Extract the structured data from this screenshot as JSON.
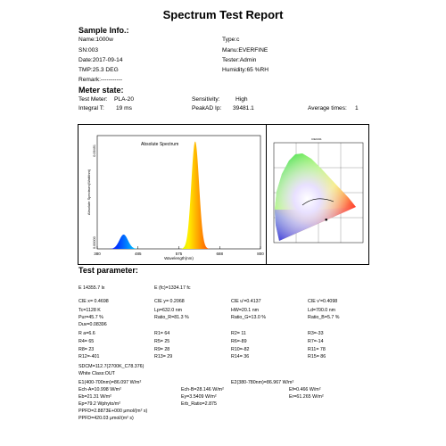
{
  "title": "Spectrum  Test Report",
  "sample": {
    "heading": "Sample Info.:",
    "name": "Name:1000w",
    "type": "Type:c",
    "sn": "SN:003",
    "manu": "Manu:EVERFINE",
    "date": "Date:2017-09-14",
    "tester": "Tester:Admin",
    "tmp": "TMP:25.3 DEG",
    "humidity": "Humidity:65 %RH",
    "remark": "Remark:-----------"
  },
  "meter": {
    "heading": "Meter state:",
    "test_meter_label": "Test Meter:",
    "test_meter": "PLA-20",
    "sensitivity_label": "Sensitivity:",
    "sensitivity": "High",
    "integral_label": "Integral T:",
    "integral": "19 ms",
    "peak_label": "PeakAD Ip:",
    "peak": "39481.1",
    "avg_label": "Average times:",
    "avg": "1"
  },
  "chart_data": [
    {
      "type": "line",
      "title": "Absolute Spectrum",
      "xlabel": "Wavelength(nm)",
      "ylabel": "Absolute Spectrum(Watt/nm)",
      "xlim": [
        380,
        800
      ],
      "ylim": [
        0,
        0.09491
      ],
      "x_ticks": [
        "380",
        "485",
        "575",
        "688",
        "800"
      ],
      "y_ticks": [
        "0.00000",
        "0.09491"
      ],
      "series": [
        {
          "peaks": [
            {
              "center": 448,
              "width": 11,
              "height": 0.012
            },
            {
              "center": 632,
              "width": 10,
              "height": 0.09
            }
          ]
        }
      ]
    },
    {
      "type": "scatter",
      "title": "CIE1931",
      "points": [
        {
          "x": 0.4698,
          "y": 0.2068
        }
      ]
    }
  ],
  "param": {
    "heading": "Test parameter:",
    "rows": [
      [
        "E  14355.7 lx",
        "",
        "E (fc)=1334.17 fc",
        ""
      ],
      [
        "CIE x= 0.4698",
        "CIE y= 0.2068",
        "CIE u'=0.4137",
        "CIE v'=0.4098"
      ],
      [
        "Tc=1128 K",
        "Lp=632.0 nm",
        "HW=20.1 nm",
        "Ld=700.0 nm"
      ],
      [
        "Pur=45.7 %",
        "Ratio_R=81.3 %",
        "Ratio_G=13.0 %",
        "Ratio_B=5.7 %"
      ],
      [
        "Duv=0.08396",
        "",
        "",
        ""
      ],
      [
        "R a=6.6",
        "R1= 64",
        "R2= 11",
        "R3=-33"
      ],
      [
        "R4= 65",
        "R5= 25",
        "R6=-89",
        "R7=-14"
      ],
      [
        "R8= 23",
        "R9= 28",
        "R10=-82",
        "R11= 78"
      ],
      [
        "R12=-401",
        "R13= 29",
        "R14= 36",
        "R15= 86"
      ]
    ],
    "sdcm": "SDCM=112.7(2700K_C78.376)",
    "white_class": "White Class:OUT",
    "e1": "E1(400-700nm)=86.097 W/m²",
    "e2": "E2(380-780nm)=86.967 W/m²",
    "ech_a": "Ech-A=10.998 W/m²",
    "ech_b": "Ech-B=28.146 W/m²",
    "ef": "Ef=0.466 W/m²",
    "eb": "Eb=21.31 W/m²",
    "ey": "Ey=3.5409 W/m²",
    "er": "Er=61.265 W/m²",
    "ep": "Ep=79.2 Wphyto/m²",
    "erb": "Erb_Ratio=2.875",
    "pfd": "PPFD=2.8873E+000 μmol/(m² s)",
    "ppfd": "PPFD=420.03 μmol/(m² s)"
  }
}
